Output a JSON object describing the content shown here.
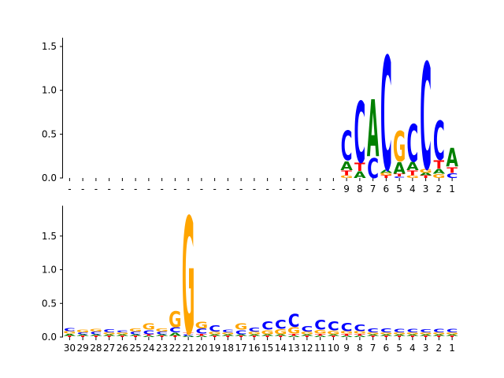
{
  "colors": {
    "A": "#008000",
    "C": "#0000ff",
    "G": "#ffa500",
    "T": "#ff0000"
  },
  "chart_data": [
    {
      "type": "sequence-logo",
      "title": "",
      "xlabel": "",
      "ylabel": "",
      "ylim": [
        0,
        1.6
      ],
      "yticks": [
        "0.0",
        "0.5",
        "1.0",
        "1.5"
      ],
      "positions": [
        "-",
        "-",
        "-",
        "-",
        "-",
        "-",
        "-",
        "-",
        "-",
        "-",
        "-",
        "-",
        "-",
        "-",
        "-",
        "-",
        "-",
        "-",
        "-",
        "-",
        "-",
        "9",
        "8",
        "7",
        "6",
        "5",
        "4",
        "3",
        "2",
        "1"
      ],
      "letters": [
        {},
        {},
        {},
        {},
        {},
        {},
        {},
        {},
        {},
        {},
        {},
        {},
        {},
        {},
        {},
        {},
        {},
        {},
        {},
        {},
        {},
        {
          "G": 0.03,
          "T": 0.06,
          "A": 0.11,
          "C": 0.37
        },
        {
          "A": 0.08,
          "T": 0.1,
          "C": 0.76
        },
        {
          "C": 0.25,
          "A": 0.71
        },
        {
          "T": 0.03,
          "G": 0.03,
          "A": 0.04,
          "C": 1.42
        },
        {
          "C": 0.02,
          "T": 0.03,
          "A": 0.14,
          "G": 0.38
        },
        {
          "G": 0.03,
          "T": 0.06,
          "A": 0.1,
          "C": 0.47
        },
        {
          "T": 0.03,
          "A": 0.03,
          "G": 0.05,
          "C": 1.33
        },
        {
          "A": 0.06,
          "G": 0.05,
          "T": 0.1,
          "C": 0.49
        },
        {
          "C": 0.06,
          "T": 0.07,
          "A": 0.23
        }
      ]
    },
    {
      "type": "sequence-logo",
      "title": "",
      "xlabel": "",
      "ylabel": "",
      "ylim": [
        0,
        1.95
      ],
      "yticks": [
        "0.0",
        "0.5",
        "1.0",
        "1.5"
      ],
      "positions": [
        "30",
        "29",
        "28",
        "27",
        "26",
        "25",
        "24",
        "23",
        "22",
        "21",
        "20",
        "19",
        "18",
        "17",
        "16",
        "15",
        "14",
        "13",
        "12",
        "11",
        "10",
        "9",
        "8",
        "7",
        "6",
        "5",
        "4",
        "3",
        "2",
        "1"
      ],
      "letters": [
        {
          "T": 0.02,
          "A": 0.03,
          "G": 0.04,
          "C": 0.05
        },
        {
          "T": 0.02,
          "A": 0.02,
          "C": 0.03,
          "G": 0.04
        },
        {
          "T": 0.02,
          "A": 0.02,
          "C": 0.04,
          "G": 0.04
        },
        {
          "T": 0.02,
          "A": 0.02,
          "G": 0.03,
          "C": 0.05
        },
        {
          "T": 0.02,
          "A": 0.02,
          "G": 0.03,
          "C": 0.03
        },
        {
          "T": 0.02,
          "A": 0.02,
          "C": 0.04,
          "G": 0.05
        },
        {
          "A": 0.02,
          "T": 0.02,
          "C": 0.07,
          "G": 0.1
        },
        {
          "T": 0.02,
          "A": 0.02,
          "C": 0.04,
          "G": 0.05
        },
        {
          "T": 0.02,
          "A": 0.05,
          "C": 0.08,
          "G": 0.26
        },
        {
          "A": 0.02,
          "C": 0.02,
          "T": 0.02,
          "G": 1.9
        },
        {
          "A": 0.02,
          "T": 0.03,
          "C": 0.08,
          "G": 0.11
        },
        {
          "T": 0.02,
          "A": 0.02,
          "G": 0.04,
          "C": 0.1
        },
        {
          "T": 0.02,
          "A": 0.02,
          "G": 0.03,
          "C": 0.04
        },
        {
          "T": 0.02,
          "A": 0.02,
          "C": 0.07,
          "G": 0.1
        },
        {
          "T": 0.02,
          "A": 0.02,
          "G": 0.04,
          "C": 0.07
        },
        {
          "T": 0.02,
          "A": 0.02,
          "G": 0.07,
          "C": 0.13
        },
        {
          "T": 0.02,
          "A": 0.02,
          "G": 0.08,
          "C": 0.15
        },
        {
          "T": 0.03,
          "A": 0.02,
          "G": 0.1,
          "C": 0.21
        },
        {
          "T": 0.02,
          "A": 0.02,
          "G": 0.04,
          "C": 0.09
        },
        {
          "T": 0.03,
          "A": 0.02,
          "G": 0.06,
          "C": 0.16
        },
        {
          "T": 0.02,
          "A": 0.02,
          "G": 0.06,
          "C": 0.15
        },
        {
          "T": 0.03,
          "A": 0.02,
          "G": 0.04,
          "C": 0.13
        },
        {
          "T": 0.03,
          "A": 0.02,
          "G": 0.04,
          "C": 0.11
        },
        {
          "T": 0.02,
          "A": 0.02,
          "G": 0.03,
          "C": 0.07
        },
        {
          "T": 0.02,
          "A": 0.02,
          "G": 0.03,
          "C": 0.07
        },
        {
          "T": 0.02,
          "A": 0.02,
          "G": 0.03,
          "C": 0.06
        },
        {
          "T": 0.02,
          "A": 0.02,
          "G": 0.03,
          "C": 0.06
        },
        {
          "T": 0.02,
          "A": 0.02,
          "G": 0.03,
          "C": 0.05
        },
        {
          "T": 0.02,
          "A": 0.02,
          "G": 0.03,
          "C": 0.06
        },
        {
          "T": 0.02,
          "A": 0.02,
          "G": 0.03,
          "C": 0.06
        }
      ]
    }
  ]
}
